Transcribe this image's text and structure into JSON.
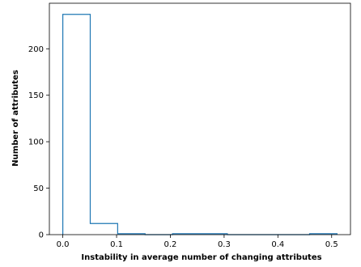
{
  "chart_data": {
    "type": "histogram",
    "title": "",
    "xlabel": "Instability in average number of changing attributes",
    "ylabel": "Number of attributes",
    "xlim": [
      -0.025,
      0.535
    ],
    "ylim": [
      0,
      249
    ],
    "xticks": [
      0.0,
      0.1,
      0.2,
      0.3,
      0.4,
      0.5
    ],
    "xtick_labels": [
      "0.0",
      "0.1",
      "0.2",
      "0.3",
      "0.4",
      "0.5"
    ],
    "yticks": [
      0,
      50,
      100,
      150,
      200
    ],
    "ytick_labels": [
      "0",
      "50",
      "100",
      "150",
      "200"
    ],
    "bin_edges": [
      0.0,
      0.051,
      0.102,
      0.153,
      0.204,
      0.255,
      0.306,
      0.357,
      0.408,
      0.459,
      0.51
    ],
    "counts": [
      237,
      12,
      1,
      0,
      1,
      1,
      0,
      0,
      0,
      1
    ],
    "histtype": "step",
    "color": "#1f77b4",
    "grid": false
  }
}
